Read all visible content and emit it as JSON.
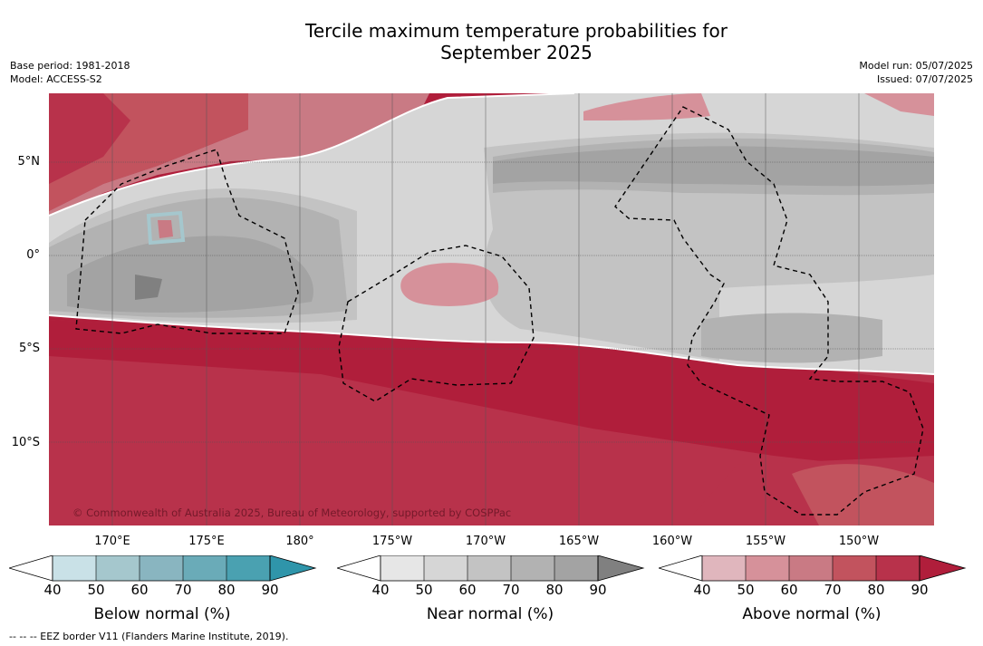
{
  "title_line1": "Tercile maximum temperature probabilities for",
  "title_line2": "September 2025",
  "meta_left": [
    "Base period: 1981-2018",
    "Model: ACCESS-S2"
  ],
  "meta_right": [
    "Model run: 05/07/2025",
    "Issued: 07/07/2025"
  ],
  "lat_labels": [
    "5°N",
    "0°",
    "5°S",
    "10°S"
  ],
  "lon_labels": [
    "170°E",
    "175°E",
    "180°",
    "175°W",
    "170°W",
    "165°W",
    "160°W",
    "155°W",
    "150°W"
  ],
  "credit": "© Commonwealth of Australia 2025, Bureau of Meteorology, supported by COSPPac",
  "footer": "--  --  -- EEZ border V11 (Flanders Marine Institute, 2019).",
  "colorbars": [
    {
      "title": "Below normal (%)",
      "ticks": [
        "40",
        "50",
        "60",
        "70",
        "80",
        "90"
      ],
      "colors": [
        "#ffffff",
        "#c9e1e7",
        "#a5c7cd",
        "#89b5c0",
        "#6aabb8",
        "#4aa1b1",
        "#2f95aa"
      ]
    },
    {
      "title": "Near normal (%)",
      "ticks": [
        "40",
        "50",
        "60",
        "70",
        "80",
        "90"
      ],
      "colors": [
        "#ffffff",
        "#e6e6e6",
        "#d6d6d6",
        "#c3c3c3",
        "#b2b2b2",
        "#a3a3a3",
        "#808080"
      ]
    },
    {
      "title": "Above normal (%)",
      "ticks": [
        "40",
        "50",
        "60",
        "70",
        "80",
        "90"
      ],
      "colors": [
        "#ffffff",
        "#e0b6bd",
        "#d6919a",
        "#c97a84",
        "#c2535e",
        "#b8324b",
        "#b01e3b"
      ]
    }
  ],
  "map_colors": {
    "above_90": "#b01e3b",
    "above_80": "#b8324b",
    "above_70": "#c2535e",
    "above_60": "#c97a84",
    "above_50": "#d6919a",
    "near_50": "#d6d6d6",
    "near_60": "#c3c3c3",
    "near_70": "#b2b2b2",
    "near_80": "#a3a3a3",
    "near_90": "#808080",
    "below_50": "#a5c7cd"
  }
}
